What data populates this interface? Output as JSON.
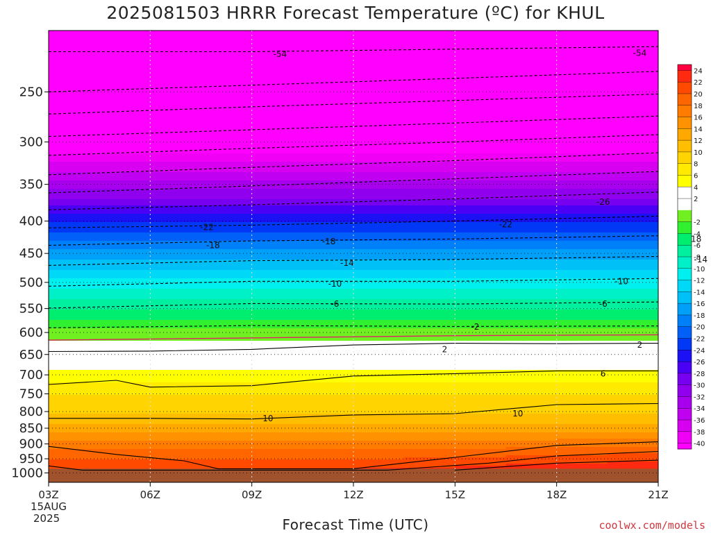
{
  "chart_data": {
    "type": "heatmap",
    "title": "2025081503 HRRR Forecast Temperature (ºC) for KHUL",
    "xlabel": "Forecast Time (UTC)",
    "ylabel": "",
    "x_ticks": [
      "03Z",
      "06Z",
      "09Z",
      "12Z",
      "15Z",
      "18Z",
      "21Z"
    ],
    "x_date_labels": [
      "15AUG",
      "2025"
    ],
    "y_ticks": [
      250,
      300,
      350,
      400,
      450,
      500,
      550,
      600,
      650,
      700,
      750,
      800,
      850,
      900,
      950,
      1000
    ],
    "y_scale": "log-pressure",
    "ylim": [
      200,
      1035
    ],
    "xlim": [
      3,
      21
    ],
    "colorbar": {
      "min": -41,
      "max": 25,
      "labels": [
        24,
        22,
        20,
        18,
        16,
        14,
        12,
        10,
        8,
        6,
        4,
        2,
        -2,
        -4,
        -6,
        -8,
        -10,
        -12,
        -14,
        -16,
        -18,
        -20,
        -22,
        -24,
        -26,
        -28,
        -30,
        -32,
        -34,
        -36,
        -38,
        -40
      ]
    },
    "contour_labels": [
      {
        "value": "-54",
        "x": 3.0,
        "p": 218
      },
      {
        "value": "-54",
        "x": 8.9,
        "p": 217
      },
      {
        "value": "-26",
        "x": 8.3,
        "p": 373
      },
      {
        "value": "-22",
        "x": 1.8,
        "p": 409
      },
      {
        "value": "-22",
        "x": 6.7,
        "p": 405
      },
      {
        "value": "-18",
        "x": 1.9,
        "p": 437
      },
      {
        "value": "-18",
        "x": 3.8,
        "p": 431
      },
      {
        "value": "-18",
        "x": 9.8,
        "p": 427
      },
      {
        "value": "-14",
        "x": 4.1,
        "p": 466
      },
      {
        "value": "-14",
        "x": 9.9,
        "p": 460
      },
      {
        "value": "-10",
        "x": 3.9,
        "p": 503
      },
      {
        "value": "-10",
        "x": 8.6,
        "p": 498
      },
      {
        "value": "-6",
        "x": 3.9,
        "p": 541
      },
      {
        "value": "-6",
        "x": 8.3,
        "p": 541
      },
      {
        "value": "-2",
        "x": 6.2,
        "p": 588
      },
      {
        "value": "2",
        "x": 5.7,
        "p": 638
      },
      {
        "value": "2",
        "x": 8.9,
        "p": 628
      },
      {
        "value": "6",
        "x": 8.3,
        "p": 697
      },
      {
        "value": "10",
        "x": 2.8,
        "p": 820
      },
      {
        "value": "10",
        "x": 6.9,
        "p": 806
      }
    ],
    "grid": true,
    "legend": "right colorbar"
  },
  "credit": "coolwx.com/models",
  "colors": {
    "ground": "#a0522d",
    "contour": "#000000",
    "freezing_line": "#e0206a"
  }
}
